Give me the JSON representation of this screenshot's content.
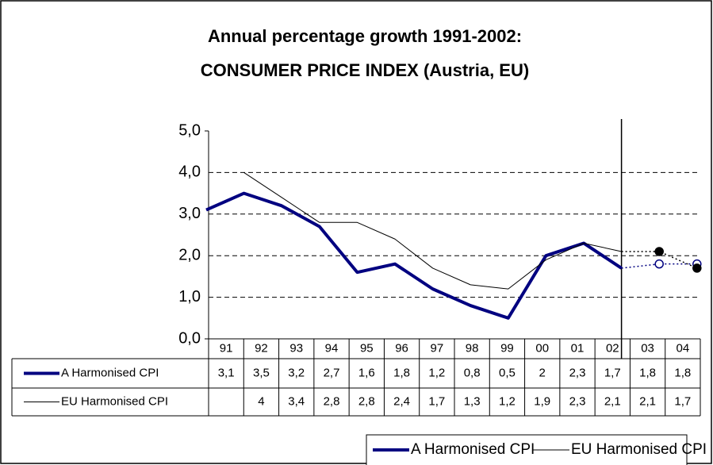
{
  "chart_data": {
    "type": "line",
    "title": [
      "Annual percentage growth 1991-2002:",
      "CONSUMER PRICE INDEX (Austria, EU)"
    ],
    "categories": [
      "91",
      "92",
      "93",
      "94",
      "95",
      "96",
      "97",
      "98",
      "99",
      "00",
      "01",
      "02",
      "03",
      "04"
    ],
    "series": [
      {
        "name": "A Harmonised CPI",
        "color": "#000080",
        "values": [
          3.1,
          3.5,
          3.2,
          2.7,
          1.6,
          1.8,
          1.2,
          0.8,
          0.5,
          2,
          2.3,
          1.7,
          1.8,
          1.8
        ],
        "value_labels": [
          "3,1",
          "3,5",
          "3,2",
          "2,7",
          "1,6",
          "1,8",
          "1,2",
          "0,8",
          "0,5",
          "2",
          "2,3",
          "1,7",
          "1,8",
          "1,8"
        ]
      },
      {
        "name": "EU Harmonised CPI",
        "color": "#000000",
        "values": [
          null,
          4,
          3.4,
          2.8,
          2.8,
          2.4,
          1.7,
          1.3,
          1.2,
          1.9,
          2.3,
          2.1,
          2.1,
          1.7
        ],
        "value_labels": [
          null,
          "4",
          "3,4",
          "2,8",
          "2,8",
          "2,4",
          "1,7",
          "1,3",
          "1,2",
          "1,9",
          "2,3",
          "2,1",
          "2,1",
          "1,7"
        ]
      }
    ],
    "ylim": [
      0,
      5
    ],
    "yticks": [
      {
        "value": 0,
        "label": "0,0"
      },
      {
        "value": 1,
        "label": "1,0"
      },
      {
        "value": 2,
        "label": "2,0"
      },
      {
        "value": 3,
        "label": "3,0"
      },
      {
        "value": 4,
        "label": "4,0"
      },
      {
        "value": 5,
        "label": "5,0"
      }
    ],
    "grid": true
  }
}
